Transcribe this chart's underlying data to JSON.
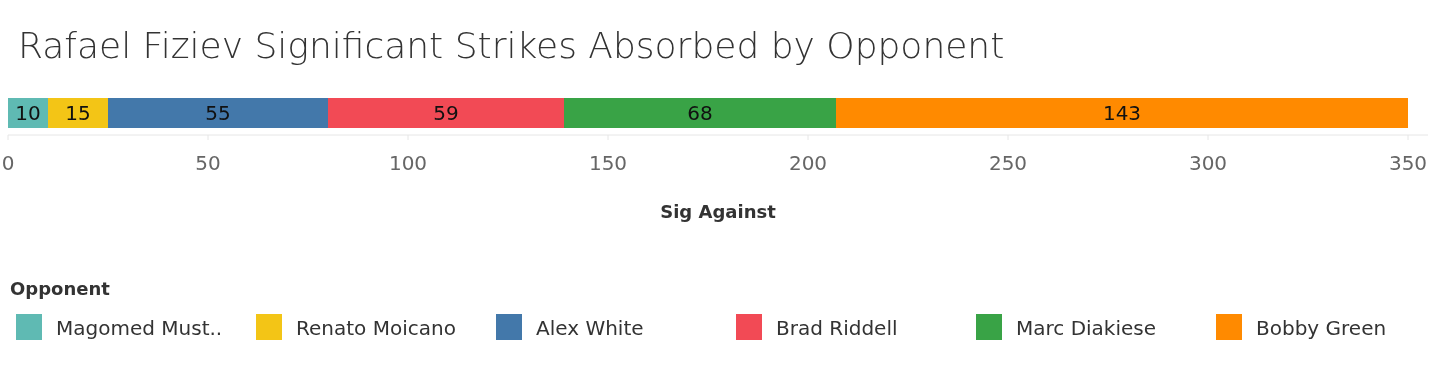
{
  "chart_data": {
    "type": "bar",
    "orientation": "horizontal",
    "stacked": true,
    "title": "Rafael Fiziev Significant Strikes Absorbed by Opponent",
    "xlabel": "Sig Against",
    "legend_title": "Opponent",
    "legend": "bottom",
    "data_labels": true,
    "categories": [
      null
    ],
    "series": [
      {
        "name": "Magomed Must..",
        "color": "#5fbab3",
        "values": [
          10
        ]
      },
      {
        "name": "Renato Moicano",
        "color": "#f3c516",
        "values": [
          15
        ]
      },
      {
        "name": "Alex White",
        "color": "#4378aa",
        "values": [
          55
        ]
      },
      {
        "name": "Brad Riddell",
        "color": "#f24a55",
        "values": [
          59
        ]
      },
      {
        "name": "Marc Diakiese",
        "color": "#39a346",
        "values": [
          68
        ]
      },
      {
        "name": "Bobby Green",
        "color": "#ff8a00",
        "values": [
          143
        ]
      }
    ],
    "xlim": [
      0,
      355
    ],
    "xticks": [
      0,
      50,
      100,
      150,
      200,
      250,
      300,
      350
    ]
  }
}
